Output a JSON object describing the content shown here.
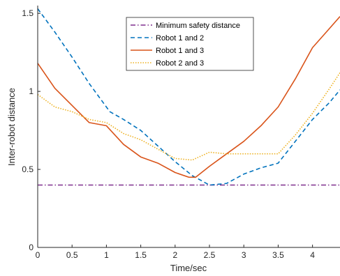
{
  "chart_data": {
    "type": "line",
    "xlabel": "Time/sec",
    "ylabel": "Inter-robot distance",
    "xlim": [
      0,
      4.4
    ],
    "ylim": [
      0,
      1.55
    ],
    "xticks": [
      0,
      0.5,
      1,
      1.5,
      2,
      2.5,
      3,
      3.5,
      4
    ],
    "xtick_labels": [
      "0",
      "0.5",
      "1",
      "1.5",
      "2",
      "2.5",
      "3",
      "3.5",
      "4"
    ],
    "yticks": [
      0,
      0.5,
      1,
      1.5
    ],
    "ytick_labels": [
      "0",
      "0.5",
      "1",
      "1.5"
    ],
    "grid": false,
    "legend_position": "top-center",
    "series": [
      {
        "name": "Minimum safety distance",
        "color": "#7E2F8E",
        "dash": "dash-dot",
        "x": [
          0,
          4.4
        ],
        "y": [
          0.4,
          0.4
        ]
      },
      {
        "name": "Robot 1 and 2",
        "color": "#0072BD",
        "dash": "dashed",
        "x": [
          0,
          0.25,
          0.5,
          0.75,
          1.0,
          1.05,
          1.25,
          1.5,
          1.75,
          2.0,
          2.25,
          2.5,
          2.75,
          3.0,
          3.25,
          3.5,
          3.75,
          4.0,
          4.25,
          4.4
        ],
        "y": [
          1.53,
          1.38,
          1.22,
          1.05,
          0.9,
          0.87,
          0.82,
          0.75,
          0.65,
          0.55,
          0.46,
          0.4,
          0.41,
          0.47,
          0.51,
          0.54,
          0.68,
          0.82,
          0.93,
          1.01
        ]
      },
      {
        "name": "Robot 1 and 3",
        "color": "#D95319",
        "dash": "solid",
        "x": [
          0,
          0.25,
          0.5,
          0.75,
          1.0,
          1.25,
          1.5,
          1.75,
          2.0,
          2.2,
          2.3,
          2.5,
          2.75,
          3.0,
          3.25,
          3.5,
          3.75,
          4.0,
          4.2,
          4.4
        ],
        "y": [
          1.18,
          1.02,
          0.91,
          0.8,
          0.78,
          0.66,
          0.58,
          0.54,
          0.48,
          0.45,
          0.45,
          0.52,
          0.6,
          0.68,
          0.78,
          0.9,
          1.08,
          1.28,
          1.38,
          1.48
        ]
      },
      {
        "name": "Robot 2 and 3",
        "color": "#EDB120",
        "dash": "dotted",
        "x": [
          0,
          0.25,
          0.5,
          0.75,
          1.0,
          1.25,
          1.5,
          1.75,
          2.0,
          2.25,
          2.5,
          2.75,
          3.0,
          3.25,
          3.5,
          3.75,
          4.0,
          4.25,
          4.4
        ],
        "y": [
          0.98,
          0.9,
          0.87,
          0.82,
          0.8,
          0.73,
          0.69,
          0.63,
          0.57,
          0.56,
          0.61,
          0.6,
          0.6,
          0.6,
          0.6,
          0.72,
          0.86,
          1.02,
          1.12
        ]
      }
    ]
  }
}
